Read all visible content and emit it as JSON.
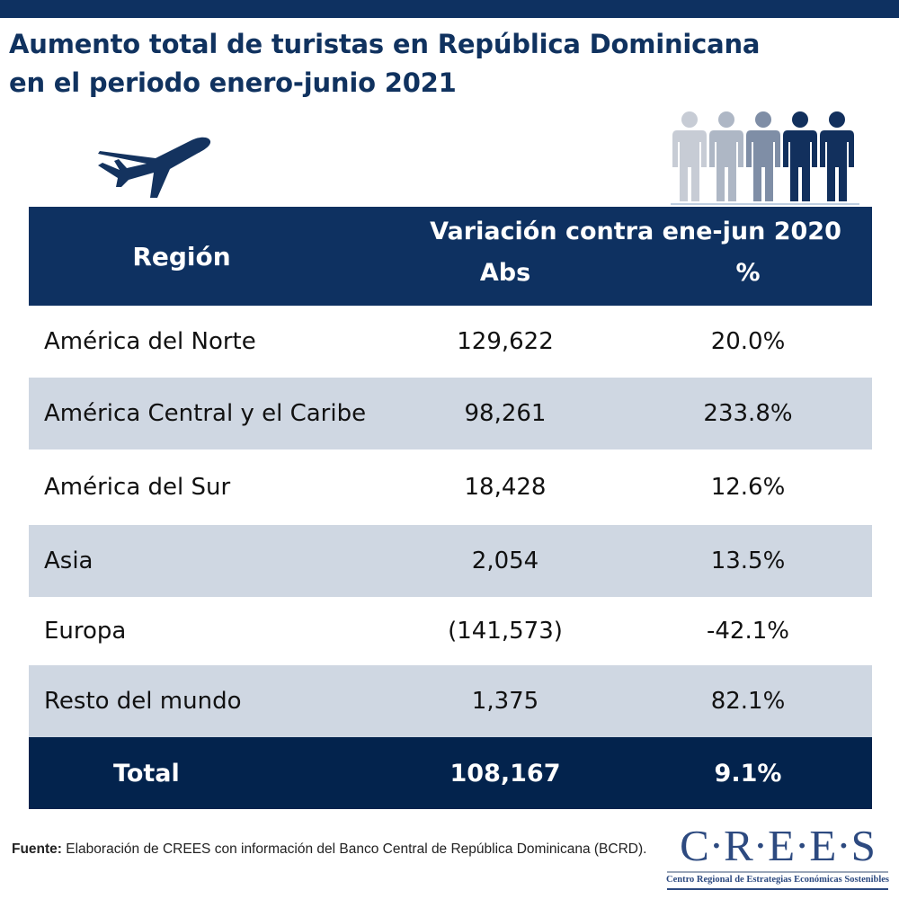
{
  "title_line1": "Aumento total de turistas en República Dominicana",
  "title_line2": "en el periodo enero-junio 2021",
  "colors": {
    "brand_dark": "#0e3161",
    "total_row": "#03234d",
    "row_shade": "#cfd7e2",
    "people_shades": [
      "#c7ccd5",
      "#aeb7c5",
      "#7f8ea6",
      "#12305d",
      "#12305d"
    ]
  },
  "icons": {
    "plane": "airplane-icon",
    "people": "people-group-icon"
  },
  "table": {
    "header": {
      "region": "Región",
      "variation": "Variación contra ene-jun 2020",
      "abs": "Abs",
      "pct": "%"
    },
    "rows": [
      {
        "region": "América del Norte",
        "abs": "129,622",
        "pct": "20.0%"
      },
      {
        "region": "América Central y el Caribe",
        "abs": "98,261",
        "pct": "233.8%"
      },
      {
        "region": "América del Sur",
        "abs": "18,428",
        "pct": "12.6%"
      },
      {
        "region": "Asia",
        "abs": "2,054",
        "pct": "13.5%"
      },
      {
        "region": "Europa",
        "abs": "(141,573)",
        "pct": "-42.1%"
      },
      {
        "region": "Resto del mundo",
        "abs": "1,375",
        "pct": "82.1%"
      }
    ],
    "total": {
      "region": "Total",
      "abs": "108,167",
      "pct": "9.1%"
    }
  },
  "footnote": {
    "label": "Fuente:",
    "text": " Elaboración de CREES con información del Banco Central de República Dominicana (BCRD)."
  },
  "logo": {
    "name": "C·R·E·E·S",
    "subtitle": "Centro Regional de Estrategias Económicas Sostenibles"
  }
}
